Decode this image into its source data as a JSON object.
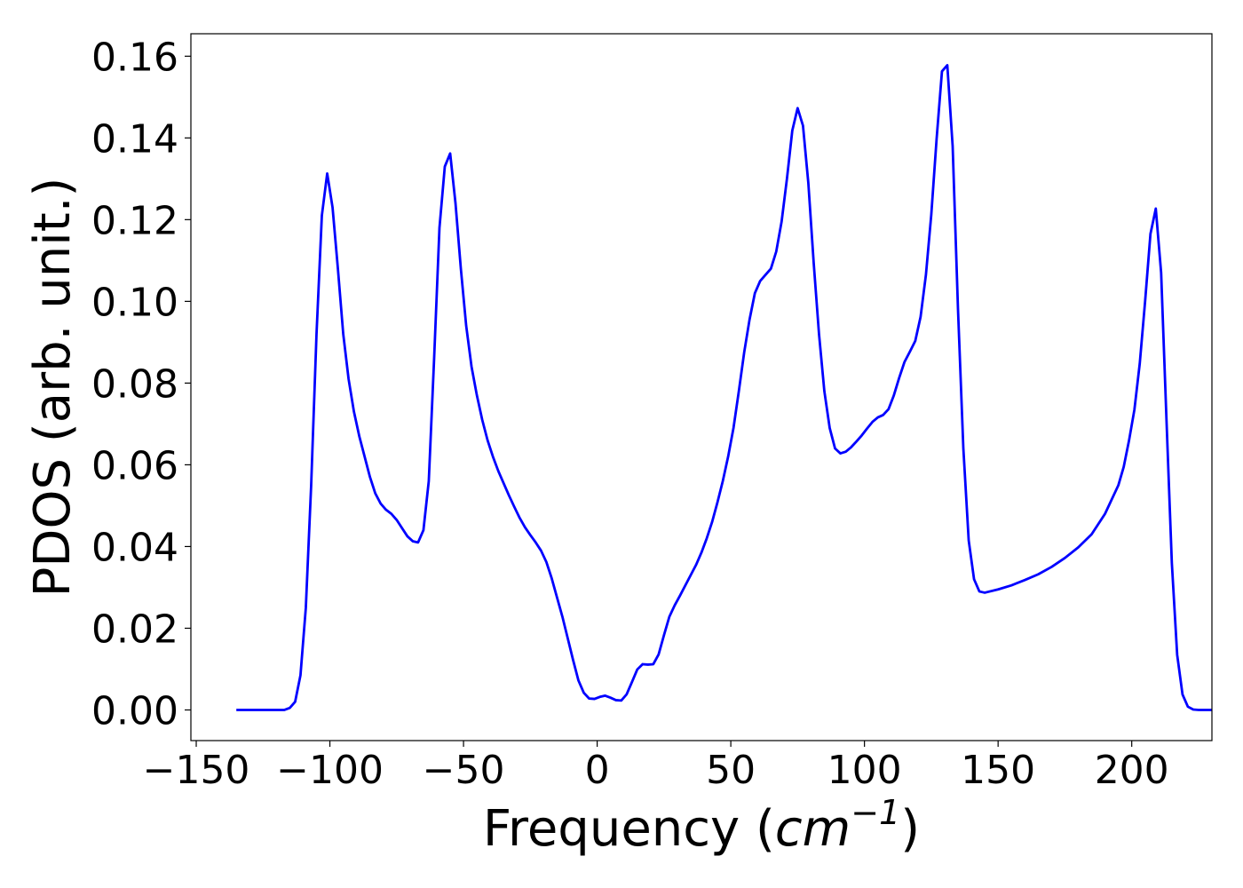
{
  "chart_data": {
    "type": "line",
    "title": "",
    "xlabel": "Frequency",
    "xlabel_unit_base": "cm",
    "xlabel_unit_exponent": "−1",
    "ylabel": "PDOS (arb. unit.)",
    "xlim": [
      -152,
      230
    ],
    "ylim": [
      -0.0075,
      0.1655
    ],
    "x_ticks": [
      -150,
      -100,
      -50,
      0,
      50,
      100,
      150,
      200
    ],
    "x_tick_labels": [
      "−150",
      "−100",
      "−50",
      "0",
      "50",
      "100",
      "150",
      "200"
    ],
    "y_ticks": [
      0.0,
      0.02,
      0.04,
      0.06,
      0.08,
      0.1,
      0.12,
      0.14,
      0.16
    ],
    "y_tick_labels": [
      "0.00",
      "0.02",
      "0.04",
      "0.06",
      "0.08",
      "0.10",
      "0.12",
      "0.14",
      "0.16"
    ],
    "grid": false,
    "legend": "none",
    "series": [
      {
        "color": "#0000ff",
        "points": [
          [
            -135,
            0.0
          ],
          [
            -117,
            0.0
          ],
          [
            -115,
            0.0005
          ],
          [
            -113,
            0.002
          ],
          [
            -111,
            0.0085
          ],
          [
            -109,
            0.025
          ],
          [
            -107,
            0.055
          ],
          [
            -105,
            0.092
          ],
          [
            -103,
            0.121
          ],
          [
            -101,
            0.1313
          ],
          [
            -99,
            0.123
          ],
          [
            -97,
            0.108
          ],
          [
            -95,
            0.092
          ],
          [
            -93,
            0.081
          ],
          [
            -91,
            0.073
          ],
          [
            -89,
            0.067
          ],
          [
            -87,
            0.062
          ],
          [
            -85,
            0.057
          ],
          [
            -83,
            0.053
          ],
          [
            -81,
            0.0505
          ],
          [
            -79,
            0.049
          ],
          [
            -77,
            0.048
          ],
          [
            -75,
            0.0465
          ],
          [
            -73,
            0.0445
          ],
          [
            -71,
            0.0425
          ],
          [
            -69,
            0.0413
          ],
          [
            -67,
            0.041
          ],
          [
            -65,
            0.044
          ],
          [
            -63,
            0.056
          ],
          [
            -61,
            0.086
          ],
          [
            -59,
            0.118
          ],
          [
            -57,
            0.133
          ],
          [
            -55,
            0.1362
          ],
          [
            -53,
            0.124
          ],
          [
            -51,
            0.108
          ],
          [
            -49,
            0.094
          ],
          [
            -47,
            0.084
          ],
          [
            -45,
            0.077
          ],
          [
            -43,
            0.071
          ],
          [
            -41,
            0.066
          ],
          [
            -39,
            0.062
          ],
          [
            -37,
            0.0585
          ],
          [
            -35,
            0.0555
          ],
          [
            -33,
            0.0525
          ],
          [
            -31,
            0.0497
          ],
          [
            -29,
            0.047
          ],
          [
            -27,
            0.0447
          ],
          [
            -25,
            0.0428
          ],
          [
            -23,
            0.041
          ],
          [
            -21,
            0.039
          ],
          [
            -19,
            0.0362
          ],
          [
            -17,
            0.0322
          ],
          [
            -15,
            0.0275
          ],
          [
            -13,
            0.0228
          ],
          [
            -11,
            0.0175
          ],
          [
            -9,
            0.0122
          ],
          [
            -7,
            0.0072
          ],
          [
            -5,
            0.0042
          ],
          [
            -3,
            0.0028
          ],
          [
            -1,
            0.0027
          ],
          [
            1,
            0.0032
          ],
          [
            3,
            0.0035
          ],
          [
            5,
            0.003
          ],
          [
            7,
            0.0024
          ],
          [
            9,
            0.0023
          ],
          [
            11,
            0.0038
          ],
          [
            13,
            0.0068
          ],
          [
            15,
            0.0099
          ],
          [
            17,
            0.0112
          ],
          [
            19,
            0.0111
          ],
          [
            21,
            0.0112
          ],
          [
            23,
            0.0136
          ],
          [
            25,
            0.0183
          ],
          [
            27,
            0.0228
          ],
          [
            29,
            0.0256
          ],
          [
            31,
            0.028
          ],
          [
            33,
            0.0305
          ],
          [
            35,
            0.033
          ],
          [
            37,
            0.0355
          ],
          [
            39,
            0.0385
          ],
          [
            41,
            0.042
          ],
          [
            43,
            0.046
          ],
          [
            45,
            0.0508
          ],
          [
            47,
            0.056
          ],
          [
            49,
            0.062
          ],
          [
            51,
            0.069
          ],
          [
            53,
            0.078
          ],
          [
            55,
            0.0875
          ],
          [
            57,
            0.0955
          ],
          [
            59,
            0.102
          ],
          [
            61,
            0.105
          ],
          [
            63,
            0.1065
          ],
          [
            65,
            0.108
          ],
          [
            67,
            0.1122
          ],
          [
            69,
            0.1195
          ],
          [
            71,
            0.13
          ],
          [
            73,
            0.1418
          ],
          [
            75,
            0.1473
          ],
          [
            77,
            0.143
          ],
          [
            79,
            0.129
          ],
          [
            81,
            0.1095
          ],
          [
            83,
            0.092
          ],
          [
            85,
            0.078
          ],
          [
            87,
            0.069
          ],
          [
            89,
            0.064
          ],
          [
            91,
            0.0628
          ],
          [
            93,
            0.0632
          ],
          [
            95,
            0.0643
          ],
          [
            97,
            0.0657
          ],
          [
            99,
            0.0672
          ],
          [
            101,
            0.0689
          ],
          [
            103,
            0.0705
          ],
          [
            105,
            0.0716
          ],
          [
            107,
            0.0722
          ],
          [
            109,
            0.0736
          ],
          [
            111,
            0.077
          ],
          [
            113,
            0.0813
          ],
          [
            115,
            0.0852
          ],
          [
            117,
            0.0877
          ],
          [
            119,
            0.0903
          ],
          [
            121,
            0.0962
          ],
          [
            123,
            0.1065
          ],
          [
            125,
            0.1212
          ],
          [
            127,
            0.1398
          ],
          [
            129,
            0.1563
          ],
          [
            131,
            0.1578
          ],
          [
            133,
            0.138
          ],
          [
            135,
            0.098
          ],
          [
            137,
            0.064
          ],
          [
            139,
            0.0415
          ],
          [
            141,
            0.032
          ],
          [
            143,
            0.029
          ],
          [
            145,
            0.0287
          ],
          [
            150,
            0.0295
          ],
          [
            155,
            0.0305
          ],
          [
            160,
            0.0318
          ],
          [
            165,
            0.0332
          ],
          [
            170,
            0.035
          ],
          [
            175,
            0.0372
          ],
          [
            180,
            0.0398
          ],
          [
            185,
            0.043
          ],
          [
            190,
            0.048
          ],
          [
            195,
            0.055
          ],
          [
            197,
            0.0595
          ],
          [
            199,
            0.066
          ],
          [
            201,
            0.0735
          ],
          [
            203,
            0.0848
          ],
          [
            205,
            0.1
          ],
          [
            207,
            0.1165
          ],
          [
            209,
            0.1227
          ],
          [
            211,
            0.107
          ],
          [
            213,
            0.071
          ],
          [
            215,
            0.036
          ],
          [
            217,
            0.0135
          ],
          [
            219,
            0.0038
          ],
          [
            221,
            0.0008
          ],
          [
            223,
            0.0001
          ],
          [
            225,
            0.0
          ],
          [
            230,
            0.0
          ]
        ]
      }
    ]
  }
}
